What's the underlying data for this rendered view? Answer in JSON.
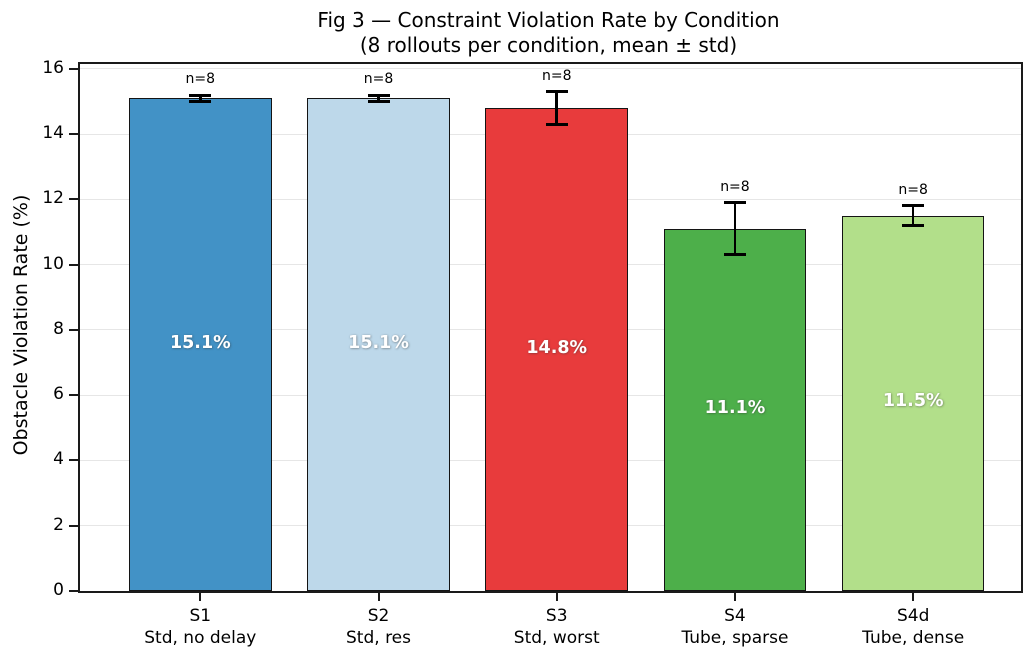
{
  "figure": {
    "title": "Fig 3 — Constraint Violation Rate by Condition",
    "subtitle": "(8 rollouts per condition, mean ± std)"
  },
  "chart_data": {
    "type": "bar",
    "title": "Fig 3 — Constraint Violation Rate by Condition",
    "subtitle": "(8 rollouts per condition, mean ± std)",
    "xlabel": "",
    "ylabel": "Obstacle Violation Rate (%)",
    "categories": [
      "S1",
      "S2",
      "S3",
      "S4",
      "S4d"
    ],
    "category_sublabels": [
      "Std, no delay",
      "Std, res",
      "Std, worst",
      "Tube, sparse",
      "Tube, dense"
    ],
    "values": [
      15.1,
      15.1,
      14.8,
      11.1,
      11.5
    ],
    "errors": [
      0.1,
      0.1,
      0.5,
      0.8,
      0.3
    ],
    "bar_value_labels": [
      "15.1%",
      "15.1%",
      "14.8%",
      "11.1%",
      "11.5%"
    ],
    "count_labels": [
      "n=8",
      "n=8",
      "n=8",
      "n=8",
      "n=8"
    ],
    "bar_colors": [
      "#4292c6",
      "#bdd8ea",
      "#e83b3c",
      "#4daf4a",
      "#b2df8a"
    ],
    "bar_edge_color": "#141414",
    "error_bar_color": "#000000",
    "value_label_color": "#ffffff",
    "ylim": [
      0,
      16.15
    ],
    "yticks": [
      0,
      2,
      4,
      6,
      8,
      10,
      12,
      14,
      16
    ],
    "grid": "horizontal",
    "grid_color": "#e6e6e6",
    "legend": "none"
  }
}
